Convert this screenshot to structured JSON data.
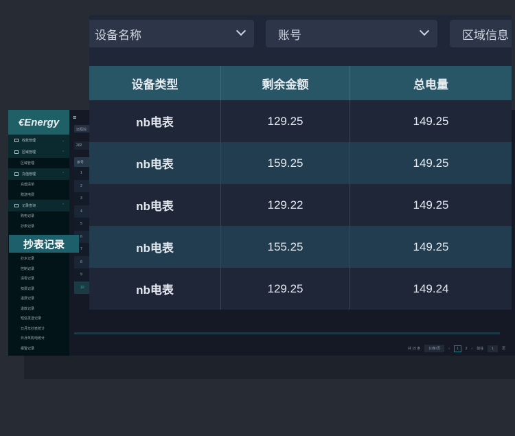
{
  "sidebar": {
    "logo": "€Energy",
    "groups": [
      {
        "label": "收款管理",
        "items": []
      },
      {
        "label": "区域管理",
        "items": [
          "区域管理"
        ]
      },
      {
        "label": "充值管理",
        "items": [
          "充值清单",
          "赠送电费"
        ]
      },
      {
        "label": "记录查询",
        "items": [
          "购电记录",
          "抄表记录",
          "抄水记录",
          "控制记录",
          "清零记录",
          "扣费记录",
          "退费记录",
          "退款记录",
          "短信发送记录",
          "日月年抄表统计",
          "日月年购电统计",
          "报警记录"
        ]
      }
    ]
  },
  "callout": "抄表记录",
  "background_table": {
    "tag": "远程控",
    "date": "202",
    "index_header": "序号",
    "rows": [
      "1",
      "2",
      "3",
      "4",
      "5",
      "6",
      "7",
      "8",
      "9",
      "10"
    ]
  },
  "pagination": {
    "total": "共 15 条",
    "page_size": "10条/页",
    "prev": "‹",
    "pages": [
      "1",
      "2"
    ],
    "next": "›",
    "goto": "前往",
    "goto_value": "1",
    "page_unit": "页"
  },
  "filters": [
    "设备名称",
    "账号",
    "区域信息"
  ],
  "table": {
    "headers": [
      "设备类型",
      "剩余金额",
      "总电量"
    ],
    "rows": [
      [
        "nb电表",
        "129.25",
        "149.25"
      ],
      [
        "nb电表",
        "159.25",
        "149.25"
      ],
      [
        "nb电表",
        "129.22",
        "149.25"
      ],
      [
        "nb电表",
        "155.25",
        "149.25"
      ],
      [
        "nb电表",
        "129.25",
        "149.24"
      ]
    ]
  },
  "colors": {
    "accent": "#295666",
    "row_alt": "#213d4f",
    "bg": "#1e2638"
  }
}
